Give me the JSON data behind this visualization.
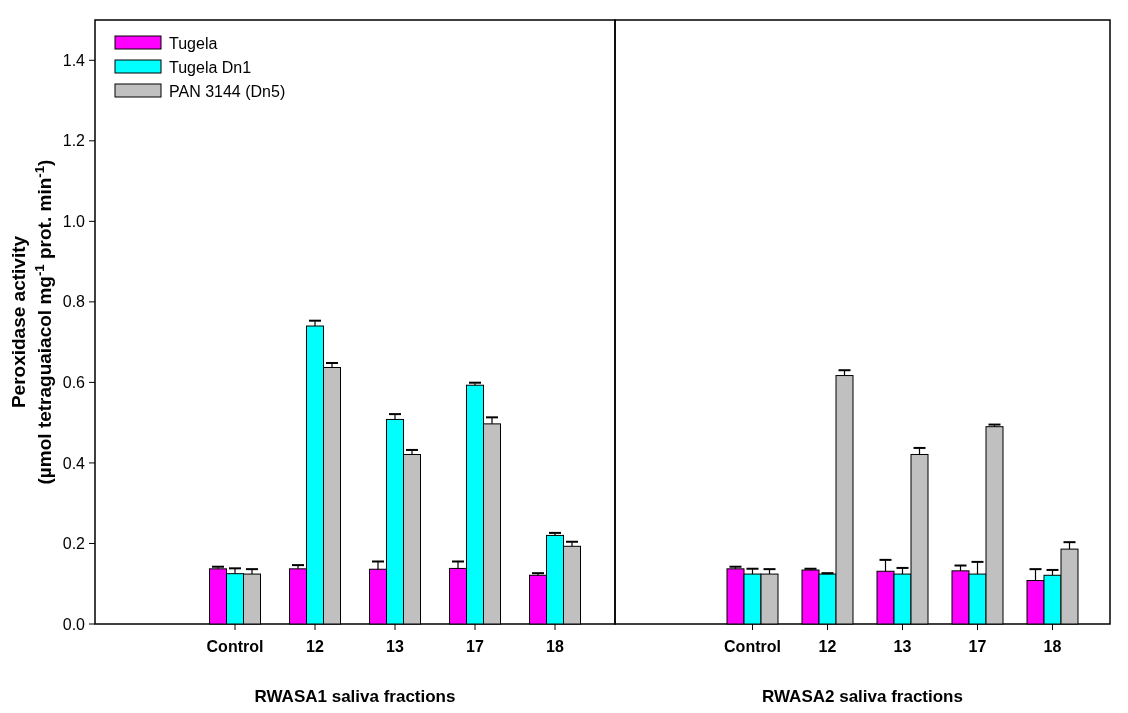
{
  "chart_data": [
    {
      "type": "bar",
      "xlabel": "RWASA1 saliva fractions",
      "ylabel": "Peroxidase activity\n(µmol tetraguaiacol mg$^{-1}$ prot. min$^{-1}$)",
      "categories": [
        "Control",
        "12",
        "13",
        "17",
        "18"
      ],
      "series": [
        {
          "name": "Tugela",
          "color": "#ff00ff",
          "values": [
            0.137,
            0.137,
            0.136,
            0.138,
            0.121
          ],
          "errors": [
            0.004,
            0.008,
            0.018,
            0.016,
            0.004
          ]
        },
        {
          "name": "Tugela Dn1",
          "color": "#00ffff",
          "values": [
            0.125,
            0.74,
            0.508,
            0.593,
            0.22
          ],
          "errors": [
            0.012,
            0.012,
            0.012,
            0.005,
            0.005
          ]
        },
        {
          "name": "PAN 3144 (Dn5)",
          "color": "#c0c0c0",
          "values": [
            0.124,
            0.637,
            0.421,
            0.497,
            0.193
          ],
          "errors": [
            0.011,
            0.01,
            0.01,
            0.015,
            0.01
          ]
        }
      ],
      "ylim": [
        0,
        1.5
      ],
      "yticks": [
        {
          "value": 0,
          "label": "0.0"
        },
        0.2,
        0.4,
        0.6,
        0.8,
        {
          "value": 1,
          "label": "1.0"
        },
        1.2,
        1.4
      ],
      "legend": "top left"
    },
    {
      "type": "bar",
      "xlabel": "RWASA2 saliva fractions",
      "categories": [
        "Control",
        "12",
        "13",
        "17",
        "18"
      ],
      "series": [
        {
          "color": "#ff00ff",
          "values": [
            0.137,
            0.134,
            0.131,
            0.132,
            0.108
          ],
          "errors": [
            0.004,
            0.002,
            0.027,
            0.012,
            0.027
          ]
        },
        {
          "color": "#00ffff",
          "values": [
            0.124,
            0.124,
            0.124,
            0.124,
            0.121
          ],
          "errors": [
            0.012,
            0.001,
            0.014,
            0.029,
            0.012
          ]
        },
        {
          "color": "#c0c0c0",
          "values": [
            0.124,
            0.617,
            0.421,
            0.49,
            0.186
          ],
          "errors": [
            0.011,
            0.012,
            0.015,
            0.004,
            0.016
          ]
        }
      ],
      "ylim": [
        0,
        1.5
      ],
      "tick_labels": "x"
    }
  ]
}
